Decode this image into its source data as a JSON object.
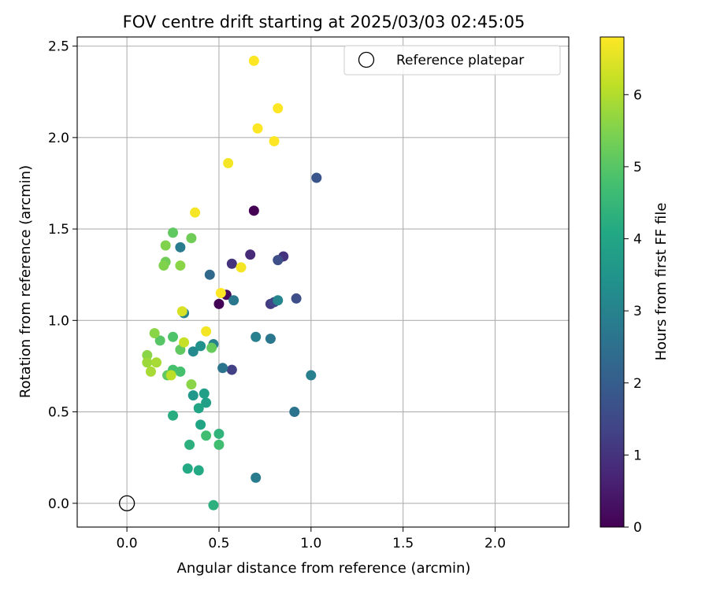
{
  "chart_data": {
    "type": "scatter",
    "title": "FOV centre drift starting at 2025/03/03 02:45:05",
    "xlabel": "Angular distance from reference (arcmin)",
    "ylabel": "Rotation from reference (arcmin)",
    "xlim": [
      -0.27,
      2.4
    ],
    "ylim": [
      -0.13,
      2.55
    ],
    "x_ticks": [
      0.0,
      0.5,
      1.0,
      1.5,
      2.0
    ],
    "x_tick_labels": [
      "0.0",
      "0.5",
      "1.0",
      "1.5",
      "2.0"
    ],
    "y_ticks": [
      0.0,
      0.5,
      1.0,
      1.5,
      2.0,
      2.5
    ],
    "y_tick_labels": [
      "0.0",
      "0.5",
      "1.0",
      "1.5",
      "2.0",
      "2.5"
    ],
    "grid": true,
    "legend": {
      "position": "upper-right",
      "entries": [
        "Reference platepar"
      ]
    },
    "reference_point": {
      "x": 0.0,
      "y": 0.0,
      "label": "Reference platepar"
    },
    "colorbar": {
      "label": "Hours from first FF file",
      "colormap": "viridis",
      "range": [
        0,
        6.8
      ],
      "ticks": [
        0,
        1,
        2,
        3,
        4,
        5,
        6
      ],
      "tick_labels": [
        "0",
        "1",
        "2",
        "3",
        "4",
        "5",
        "6"
      ]
    },
    "points": [
      {
        "x": 0.69,
        "y": 1.6,
        "h": 0.0
      },
      {
        "x": 0.5,
        "y": 1.09,
        "h": 0.05
      },
      {
        "x": 0.54,
        "y": 1.14,
        "h": 0.2
      },
      {
        "x": 0.67,
        "y": 1.36,
        "h": 0.8
      },
      {
        "x": 0.57,
        "y": 1.31,
        "h": 1.0
      },
      {
        "x": 0.85,
        "y": 1.35,
        "h": 1.0
      },
      {
        "x": 0.78,
        "y": 1.09,
        "h": 1.2
      },
      {
        "x": 0.8,
        "y": 1.1,
        "h": 1.4
      },
      {
        "x": 0.57,
        "y": 0.73,
        "h": 1.3
      },
      {
        "x": 0.82,
        "y": 1.33,
        "h": 1.6
      },
      {
        "x": 0.92,
        "y": 1.12,
        "h": 1.6
      },
      {
        "x": 1.03,
        "y": 1.78,
        "h": 1.8
      },
      {
        "x": 0.45,
        "y": 1.25,
        "h": 2.3
      },
      {
        "x": 0.58,
        "y": 1.11,
        "h": 2.7
      },
      {
        "x": 0.82,
        "y": 1.11,
        "h": 3.1
      },
      {
        "x": 0.52,
        "y": 0.74,
        "h": 2.6
      },
      {
        "x": 0.7,
        "y": 0.91,
        "h": 2.9
      },
      {
        "x": 0.78,
        "y": 0.9,
        "h": 2.7
      },
      {
        "x": 0.91,
        "y": 0.5,
        "h": 2.6
      },
      {
        "x": 1.0,
        "y": 0.7,
        "h": 2.9
      },
      {
        "x": 0.7,
        "y": 0.14,
        "h": 2.8
      },
      {
        "x": 0.29,
        "y": 1.4,
        "h": 2.8
      },
      {
        "x": 0.31,
        "y": 1.04,
        "h": 3.0
      },
      {
        "x": 0.47,
        "y": 0.87,
        "h": 3.0
      },
      {
        "x": 0.36,
        "y": 0.83,
        "h": 3.2
      },
      {
        "x": 0.4,
        "y": 0.86,
        "h": 3.4
      },
      {
        "x": 0.36,
        "y": 0.59,
        "h": 3.6
      },
      {
        "x": 0.43,
        "y": 0.55,
        "h": 3.8
      },
      {
        "x": 0.42,
        "y": 0.6,
        "h": 3.8
      },
      {
        "x": 0.39,
        "y": 0.52,
        "h": 4.0
      },
      {
        "x": 0.4,
        "y": 0.43,
        "h": 4.0
      },
      {
        "x": 0.33,
        "y": 0.19,
        "h": 4.1
      },
      {
        "x": 0.39,
        "y": 0.18,
        "h": 4.1
      },
      {
        "x": 0.34,
        "y": 0.32,
        "h": 4.3
      },
      {
        "x": 0.25,
        "y": 0.48,
        "h": 4.2
      },
      {
        "x": 0.47,
        "y": -0.01,
        "h": 4.3
      },
      {
        "x": 0.5,
        "y": 0.38,
        "h": 4.4
      },
      {
        "x": 0.43,
        "y": 0.37,
        "h": 4.7
      },
      {
        "x": 0.5,
        "y": 0.32,
        "h": 4.7
      },
      {
        "x": 0.29,
        "y": 0.72,
        "h": 4.8
      },
      {
        "x": 0.25,
        "y": 0.73,
        "h": 4.8
      },
      {
        "x": 0.25,
        "y": 0.91,
        "h": 4.9
      },
      {
        "x": 0.18,
        "y": 0.89,
        "h": 5.0
      },
      {
        "x": 0.29,
        "y": 0.84,
        "h": 5.1
      },
      {
        "x": 0.22,
        "y": 0.7,
        "h": 5.1
      },
      {
        "x": 0.46,
        "y": 0.85,
        "h": 5.2
      },
      {
        "x": 0.35,
        "y": 0.65,
        "h": 5.6
      },
      {
        "x": 0.25,
        "y": 1.48,
        "h": 5.1
      },
      {
        "x": 0.35,
        "y": 1.45,
        "h": 5.3
      },
      {
        "x": 0.21,
        "y": 1.41,
        "h": 5.5
      },
      {
        "x": 0.21,
        "y": 1.32,
        "h": 5.3
      },
      {
        "x": 0.2,
        "y": 1.3,
        "h": 5.5
      },
      {
        "x": 0.29,
        "y": 1.3,
        "h": 5.6
      },
      {
        "x": 0.15,
        "y": 0.93,
        "h": 5.6
      },
      {
        "x": 0.11,
        "y": 0.81,
        "h": 5.6
      },
      {
        "x": 0.11,
        "y": 0.77,
        "h": 5.8
      },
      {
        "x": 0.16,
        "y": 0.77,
        "h": 5.9
      },
      {
        "x": 0.13,
        "y": 0.72,
        "h": 5.9
      },
      {
        "x": 0.24,
        "y": 0.7,
        "h": 6.1
      },
      {
        "x": 0.31,
        "y": 0.88,
        "h": 6.2
      },
      {
        "x": 0.3,
        "y": 1.05,
        "h": 6.4
      },
      {
        "x": 0.43,
        "y": 0.94,
        "h": 6.7
      },
      {
        "x": 0.51,
        "y": 1.15,
        "h": 6.8
      },
      {
        "x": 0.62,
        "y": 1.29,
        "h": 6.7
      },
      {
        "x": 0.37,
        "y": 1.59,
        "h": 6.7
      },
      {
        "x": 0.55,
        "y": 1.86,
        "h": 6.7
      },
      {
        "x": 0.71,
        "y": 2.05,
        "h": 6.8
      },
      {
        "x": 0.8,
        "y": 1.98,
        "h": 6.8
      },
      {
        "x": 0.82,
        "y": 2.16,
        "h": 6.8
      },
      {
        "x": 0.69,
        "y": 2.42,
        "h": 6.8
      }
    ]
  }
}
